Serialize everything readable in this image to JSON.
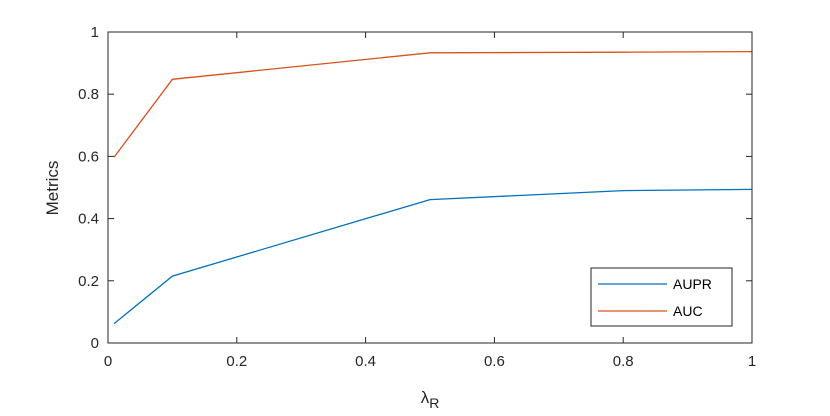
{
  "chart_data": {
    "type": "line",
    "title": "",
    "xlabel": "λ",
    "xlabel_subscript": "R",
    "ylabel": "Metrics",
    "xlim": [
      0,
      1
    ],
    "ylim": [
      0,
      1
    ],
    "xticks": [
      "0",
      "0.2",
      "0.4",
      "0.6",
      "0.8",
      "1"
    ],
    "yticks": [
      "0",
      "0.2",
      "0.4",
      "0.6",
      "0.8",
      "1"
    ],
    "x": [
      0.01,
      0.1,
      0.5,
      0.8,
      1.0
    ],
    "series": [
      {
        "name": "AUPR",
        "color": "#0072BD",
        "values": [
          0.063,
          0.215,
          0.461,
          0.49,
          0.494
        ]
      },
      {
        "name": "AUC",
        "color": "#D95319",
        "values": [
          0.599,
          0.848,
          0.933,
          0.935,
          0.937
        ]
      }
    ],
    "grid": false,
    "legend_position": "bottom-right"
  }
}
